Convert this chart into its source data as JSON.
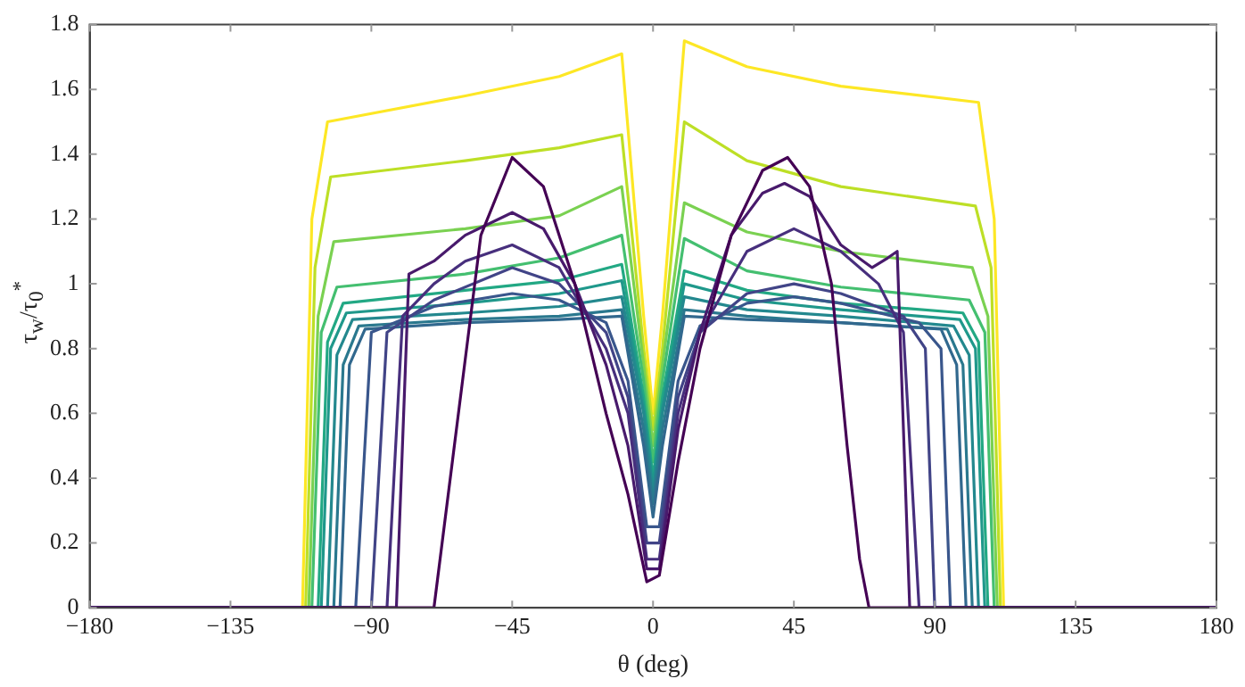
{
  "chart_data": {
    "type": "line",
    "xlabel": "θ (deg)",
    "ylabel": "τ$_{w}$/τ$_{0}$$^{*}$",
    "marker": "none",
    "xlim": [
      -180,
      180
    ],
    "xticks": [
      -180,
      -135,
      -90,
      -45,
      0,
      45,
      90,
      135,
      180
    ],
    "ylim": [
      0,
      1.8
    ],
    "yticks": [
      0,
      0.2,
      0.4,
      0.6,
      0.8,
      1,
      1.2,
      1.4,
      1.6,
      1.8
    ],
    "series": [
      {
        "color": "#440154",
        "x": [
          -180,
          -70,
          -61,
          -55,
          -45,
          -35,
          -25,
          -15,
          -8,
          -2,
          2,
          8,
          15,
          25,
          35,
          43,
          50,
          57,
          62,
          66,
          69,
          180
        ],
        "values": [
          0,
          0,
          0.69,
          1.15,
          1.39,
          1.3,
          1.0,
          0.6,
          0.35,
          0.08,
          0.1,
          0.45,
          0.8,
          1.15,
          1.35,
          1.39,
          1.3,
          1.0,
          0.5,
          0.15,
          0,
          0
        ]
      },
      {
        "color": "#481a6c",
        "x": [
          -180,
          -82,
          -78,
          -70,
          -60,
          -45,
          -35,
          -25,
          -15,
          -8,
          -2,
          2,
          8,
          15,
          25,
          35,
          42,
          50,
          60,
          70,
          75,
          78,
          82,
          180
        ],
        "values": [
          0,
          0,
          1.03,
          1.07,
          1.15,
          1.22,
          1.17,
          1.0,
          0.75,
          0.5,
          0.12,
          0.12,
          0.55,
          0.85,
          1.15,
          1.28,
          1.31,
          1.27,
          1.12,
          1.05,
          1.08,
          1.1,
          0,
          0
        ]
      },
      {
        "color": "#472f7d",
        "x": [
          -180,
          -85,
          -80,
          -70,
          -60,
          -45,
          -30,
          -15,
          -8,
          -2,
          2,
          8,
          15,
          30,
          45,
          60,
          72,
          80,
          85,
          180
        ],
        "values": [
          0,
          0,
          0.9,
          1.0,
          1.07,
          1.12,
          1.05,
          0.8,
          0.6,
          0.15,
          0.15,
          0.6,
          0.85,
          1.1,
          1.17,
          1.1,
          1.0,
          0.85,
          0,
          0
        ]
      },
      {
        "color": "#414487",
        "x": [
          -180,
          -90,
          -85,
          -70,
          -45,
          -30,
          -15,
          -8,
          -2,
          2,
          8,
          15,
          30,
          45,
          60,
          80,
          87,
          90,
          180
        ],
        "values": [
          0,
          0,
          0.85,
          0.95,
          1.05,
          1.0,
          0.85,
          0.65,
          0.2,
          0.2,
          0.65,
          0.85,
          0.97,
          1.0,
          0.97,
          0.9,
          0.8,
          0,
          0
        ]
      },
      {
        "color": "#39568c",
        "x": [
          -180,
          -95,
          -90,
          -70,
          -45,
          -30,
          -15,
          -8,
          -2,
          2,
          8,
          15,
          30,
          45,
          60,
          85,
          92,
          95,
          180
        ],
        "values": [
          0,
          0,
          0.85,
          0.93,
          0.97,
          0.95,
          0.88,
          0.7,
          0.25,
          0.25,
          0.7,
          0.87,
          0.94,
          0.96,
          0.94,
          0.88,
          0.8,
          0,
          0
        ]
      },
      {
        "color": "#31688e",
        "x": [
          -180,
          -100,
          -97,
          -92,
          -60,
          -30,
          -10,
          -3,
          0,
          3,
          10,
          30,
          60,
          92,
          97,
          100,
          180
        ],
        "values": [
          0,
          0,
          0.75,
          0.86,
          0.88,
          0.89,
          0.9,
          0.5,
          0.28,
          0.5,
          0.9,
          0.89,
          0.88,
          0.86,
          0.75,
          0,
          0
        ]
      },
      {
        "color": "#2a788e",
        "x": [
          -180,
          -102,
          -99,
          -94,
          -60,
          -30,
          -10,
          -3,
          0,
          3,
          10,
          30,
          60,
          94,
          99,
          102,
          180
        ],
        "values": [
          0,
          0,
          0.75,
          0.87,
          0.89,
          0.9,
          0.92,
          0.55,
          0.32,
          0.55,
          0.92,
          0.9,
          0.88,
          0.86,
          0.75,
          0,
          0
        ]
      },
      {
        "color": "#23888e",
        "x": [
          -180,
          -104,
          -101,
          -96,
          -60,
          -30,
          -10,
          -3,
          0,
          3,
          10,
          30,
          60,
          96,
          101,
          104,
          180
        ],
        "values": [
          0,
          0,
          0.78,
          0.89,
          0.91,
          0.93,
          0.96,
          0.6,
          0.35,
          0.6,
          0.96,
          0.92,
          0.9,
          0.87,
          0.78,
          0,
          0
        ]
      },
      {
        "color": "#1f988b",
        "x": [
          -180,
          -106,
          -103,
          -98,
          -60,
          -30,
          -10,
          -3,
          0,
          3,
          10,
          30,
          60,
          98,
          103,
          106,
          180
        ],
        "values": [
          0,
          0,
          0.8,
          0.91,
          0.94,
          0.97,
          1.01,
          0.62,
          0.38,
          0.62,
          1.0,
          0.95,
          0.92,
          0.89,
          0.8,
          0,
          0
        ]
      },
      {
        "color": "#22a884",
        "x": [
          -180,
          -107,
          -104,
          -99,
          -60,
          -30,
          -10,
          -3,
          0,
          3,
          10,
          30,
          60,
          99,
          104,
          107,
          180
        ],
        "values": [
          0,
          0,
          0.82,
          0.94,
          0.98,
          1.01,
          1.06,
          0.65,
          0.4,
          0.65,
          1.04,
          0.98,
          0.94,
          0.91,
          0.82,
          0,
          0
        ]
      },
      {
        "color": "#44bf70",
        "x": [
          -180,
          -109,
          -106,
          -101,
          -60,
          -30,
          -10,
          -3,
          0,
          3,
          10,
          30,
          60,
          101,
          106,
          109,
          180
        ],
        "values": [
          0,
          0,
          0.85,
          0.99,
          1.03,
          1.08,
          1.15,
          0.7,
          0.45,
          0.7,
          1.14,
          1.04,
          0.99,
          0.95,
          0.85,
          0,
          0
        ]
      },
      {
        "color": "#7ad151",
        "x": [
          -180,
          -110,
          -107,
          -102,
          -60,
          -30,
          -10,
          -3,
          0,
          3,
          10,
          30,
          60,
          102,
          107,
          110,
          180
        ],
        "values": [
          0,
          0,
          0.9,
          1.13,
          1.17,
          1.21,
          1.3,
          0.75,
          0.5,
          0.75,
          1.25,
          1.16,
          1.1,
          1.05,
          0.9,
          0,
          0
        ]
      },
      {
        "color": "#bddf26",
        "x": [
          -180,
          -111,
          -108,
          -103,
          -60,
          -30,
          -10,
          -3,
          0,
          3,
          10,
          30,
          60,
          103,
          108,
          111,
          180
        ],
        "values": [
          0,
          0,
          1.05,
          1.33,
          1.38,
          1.42,
          1.46,
          0.8,
          0.55,
          0.8,
          1.5,
          1.38,
          1.3,
          1.24,
          1.05,
          0,
          0
        ]
      },
      {
        "color": "#fde725",
        "x": [
          -180,
          -112,
          -109,
          -104,
          -60,
          -30,
          -10,
          -3,
          0,
          3,
          10,
          30,
          60,
          104,
          109,
          112,
          180
        ],
        "values": [
          0,
          0,
          1.2,
          1.5,
          1.58,
          1.64,
          1.71,
          0.9,
          0.6,
          0.9,
          1.75,
          1.67,
          1.61,
          1.56,
          1.2,
          0,
          0
        ]
      }
    ]
  }
}
